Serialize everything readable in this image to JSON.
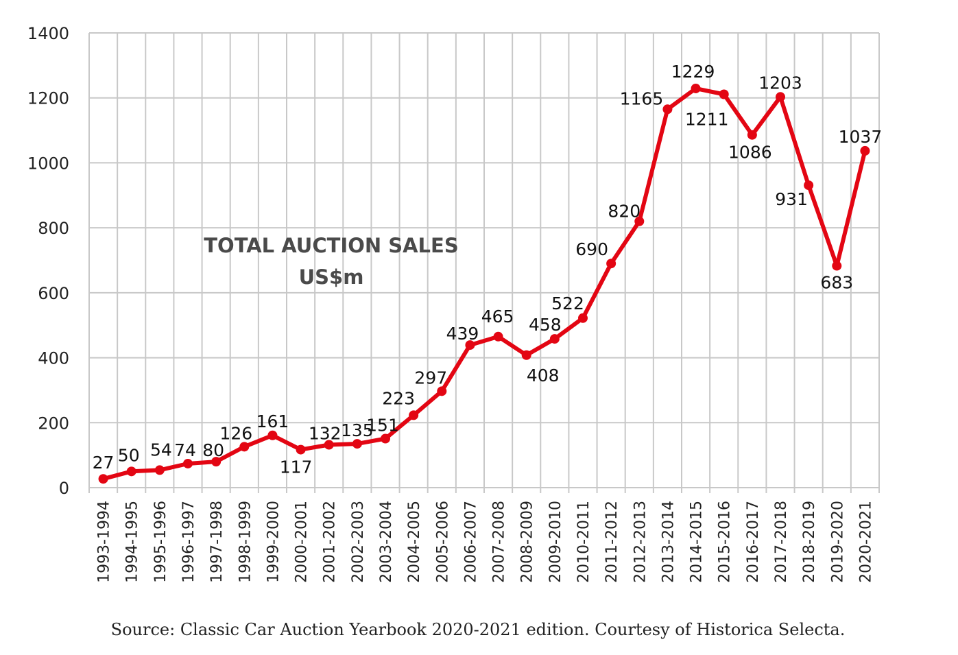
{
  "chart_data": {
    "type": "line",
    "title": "TOTAL AUCTION SALES",
    "subtitle": "US$m",
    "xlabel": "",
    "ylabel": "",
    "ylim": [
      0,
      1400
    ],
    "yticks": [
      0,
      200,
      400,
      600,
      800,
      1000,
      1200,
      1400
    ],
    "grid": true,
    "line_color": "#e30613",
    "categories": [
      "1993-1994",
      "1994-1995",
      "1995-1996",
      "1996-1997",
      "1997-1998",
      "1998-1999",
      "1999-2000",
      "2000-2001",
      "2001-2002",
      "2002-2003",
      "2003-2004",
      "2004-2005",
      "2005-2006",
      "2006-2007",
      "2007-2008",
      "2008-2009",
      "2009-2010",
      "2010-2011",
      "2011-2012",
      "2012-2013",
      "2013-2014",
      "2014-2015",
      "2015-2016",
      "2016-2017",
      "2017-2018",
      "2018-2019",
      "2019-2020",
      "2020-2021"
    ],
    "series": [
      {
        "values": [
          27,
          50,
          54,
          74,
          80,
          126,
          161,
          117,
          132,
          135,
          151,
          223,
          297,
          439,
          465,
          408,
          458,
          522,
          690,
          820,
          1165,
          1229,
          1211,
          1086,
          1203,
          931,
          683,
          1037
        ]
      }
    ],
    "source": "Source: Classic Car Auction Yearbook 2020-2021 edition. Courtesy of Historica Selecta."
  }
}
